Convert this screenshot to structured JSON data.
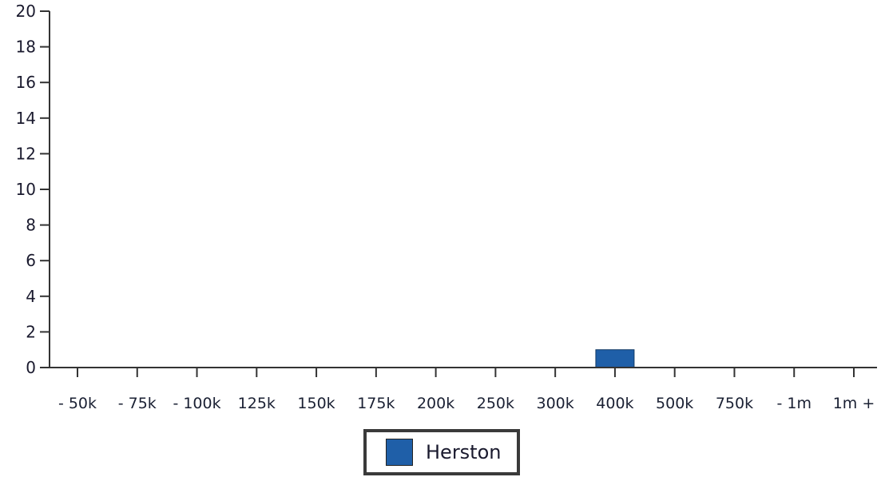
{
  "chart_data": {
    "type": "bar",
    "categories": [
      "- 50k",
      "- 75k",
      "- 100k",
      "125k",
      "150k",
      "175k",
      "200k",
      "250k",
      "300k",
      "400k",
      "500k",
      "750k",
      "- 1m",
      "1m +"
    ],
    "series": [
      {
        "name": "Herston",
        "values": [
          0,
          0,
          0,
          0,
          0,
          0,
          0,
          0,
          0,
          1,
          0,
          0,
          0,
          0
        ]
      }
    ],
    "title": "",
    "xlabel": "",
    "ylabel": "",
    "ylim": [
      0,
      20
    ],
    "yticks": [
      "0",
      "2",
      "4",
      "6",
      "8",
      "10",
      "12",
      "14",
      "16",
      "18",
      "20"
    ],
    "grid": false,
    "legend_position": "bottom-center",
    "colors": {
      "series": "#1f5fa8",
      "axis": "#333333"
    }
  }
}
